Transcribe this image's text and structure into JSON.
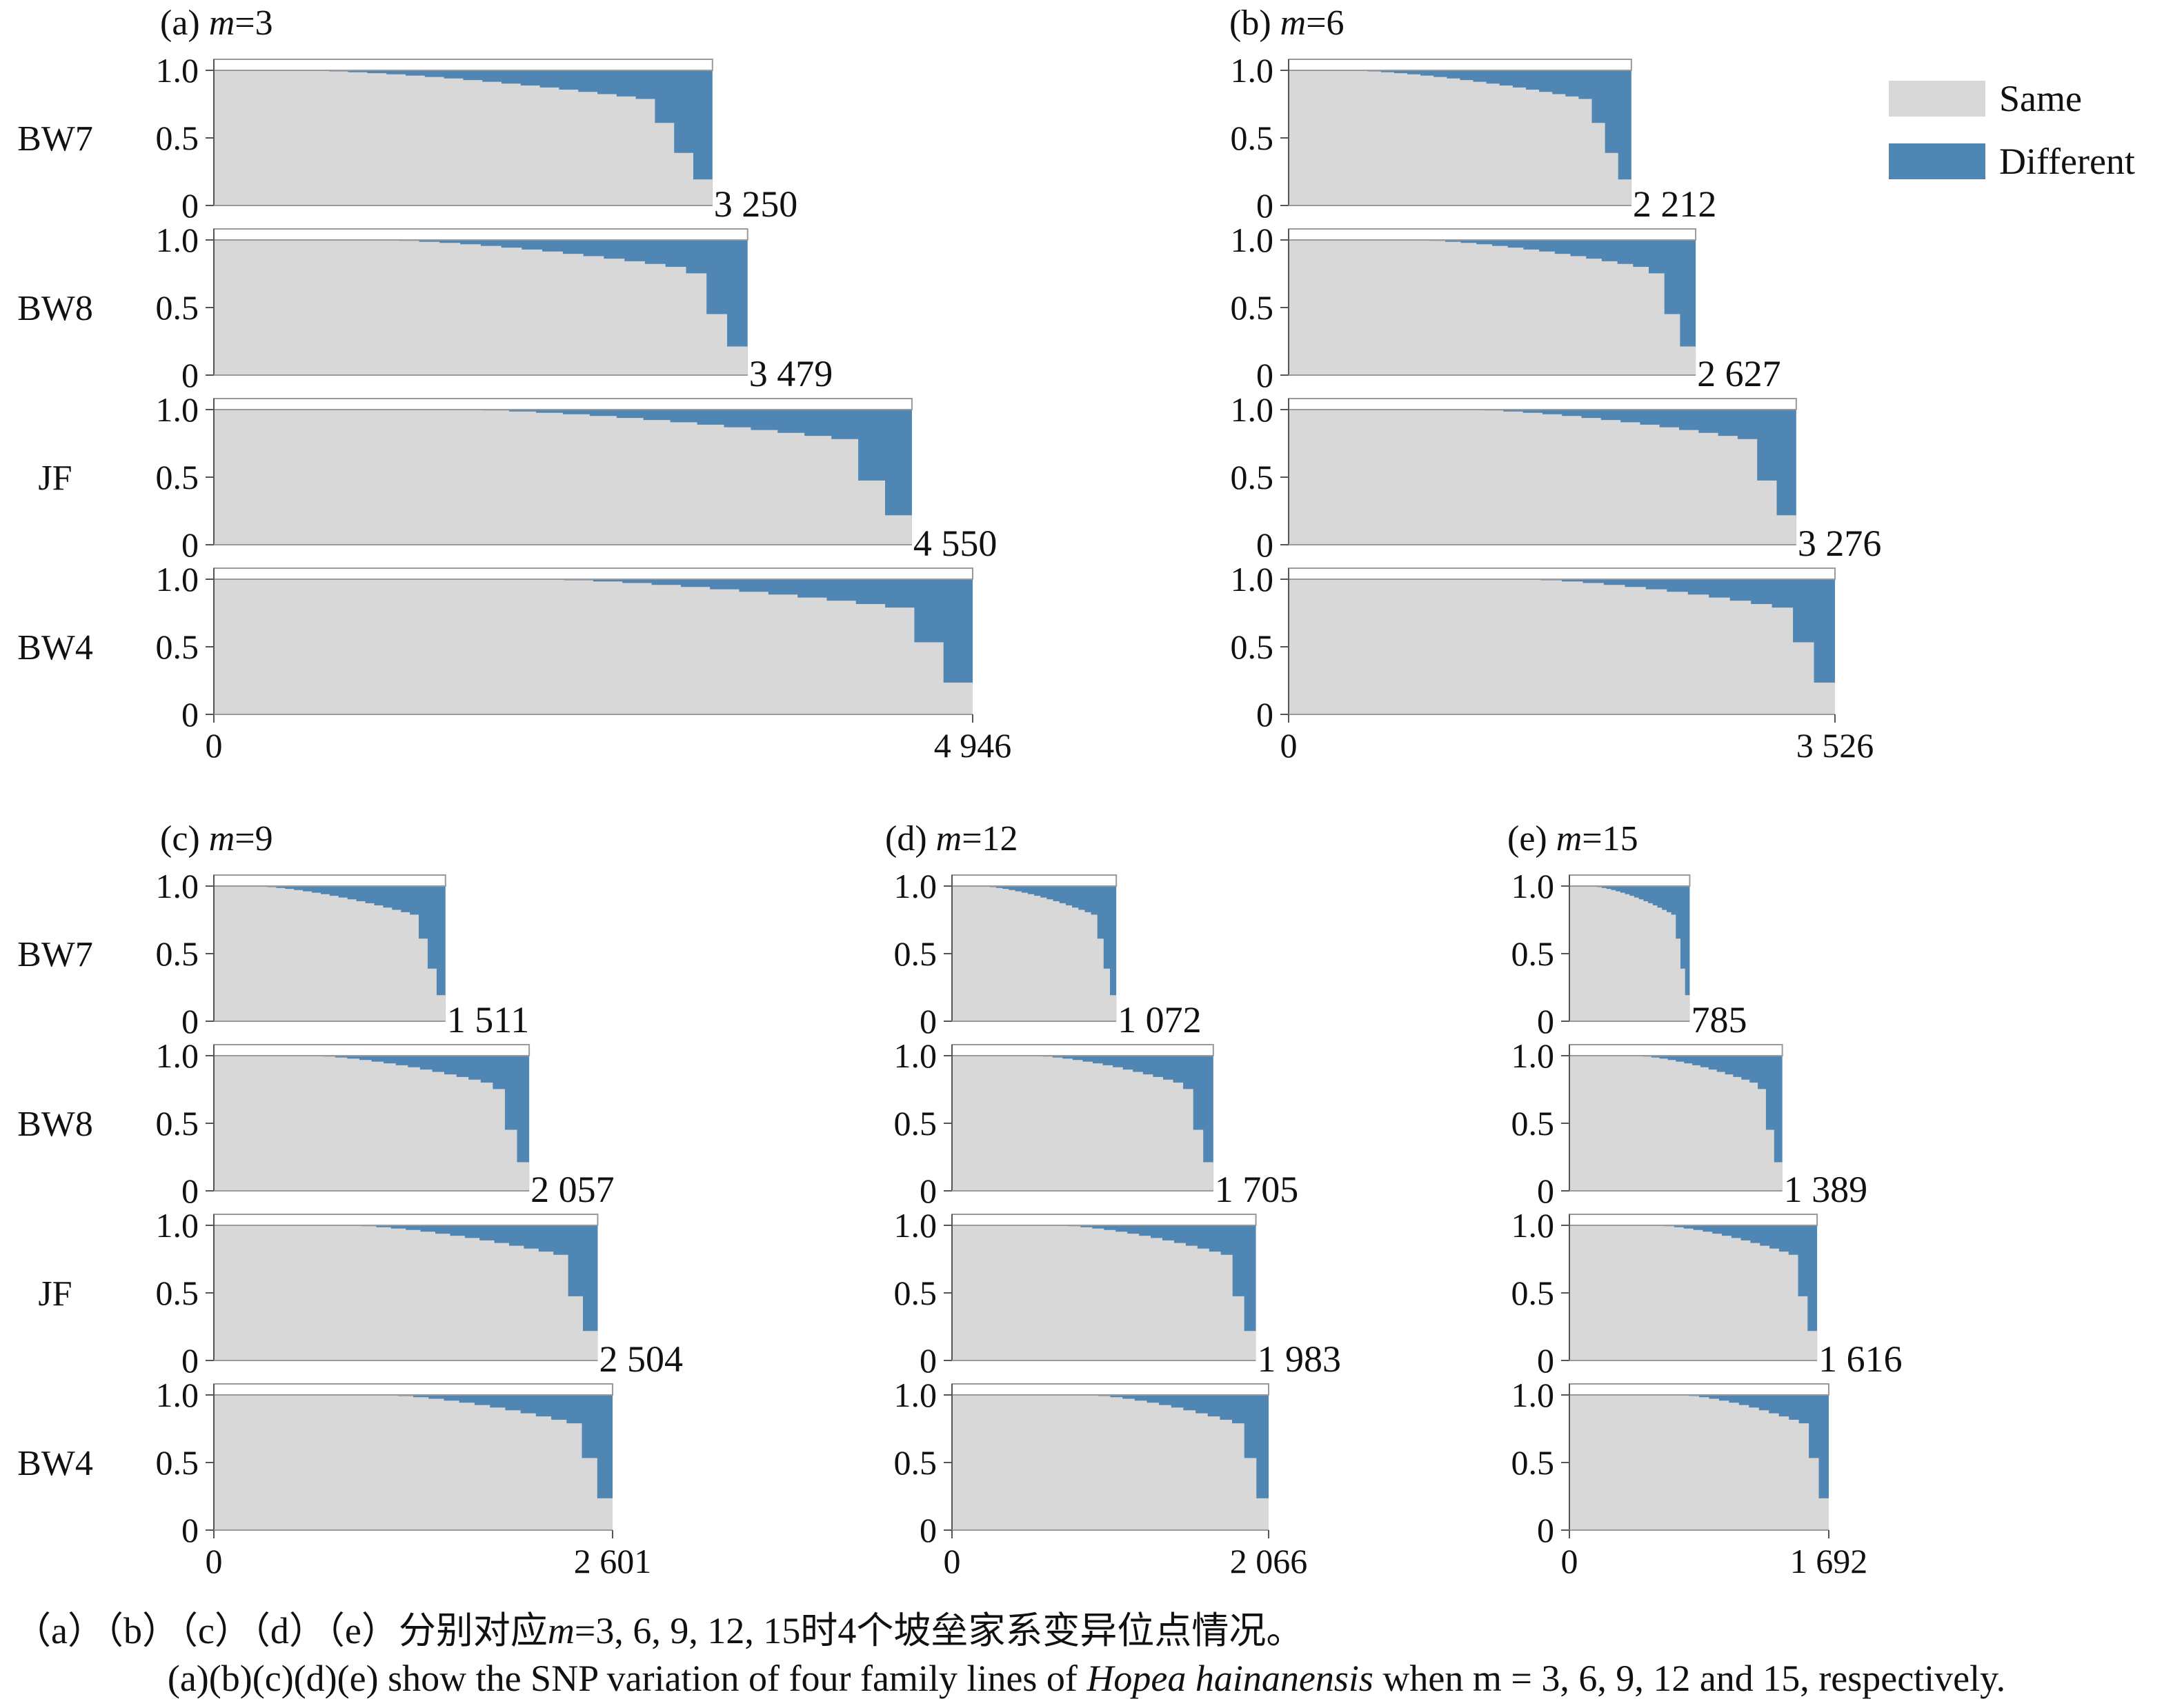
{
  "legend": {
    "same_label": "Same",
    "different_label": "Different",
    "colors": {
      "same": "#d8d8d8",
      "different": "#4f86b4"
    }
  },
  "chart_data": {
    "type": "area",
    "description_axis": "SNP sites sorted by proportion (0-1)",
    "y_ticks": [
      "1.0",
      "0.5",
      "0"
    ],
    "ylim": [
      0,
      1
    ],
    "families": [
      "BW7",
      "BW8",
      "JF",
      "BW4"
    ],
    "panels": [
      {
        "label": "(a) ",
        "m_text": "m",
        "eq_text": "=3",
        "x_start_label": "0",
        "x_end_label": "4 946",
        "xlim": [
          0,
          4946
        ],
        "series": [
          {
            "family": "BW7",
            "sites": 3250,
            "end_label": "3 250"
          },
          {
            "family": "BW8",
            "sites": 3479,
            "end_label": "3 479"
          },
          {
            "family": "JF",
            "sites": 4550,
            "end_label": "4 550"
          },
          {
            "family": "BW4",
            "sites": 4946,
            "end_label": ""
          }
        ]
      },
      {
        "label": "(b) ",
        "m_text": "m",
        "eq_text": "=6",
        "x_start_label": "0",
        "x_end_label": "3 526",
        "xlim": [
          0,
          3526
        ],
        "series": [
          {
            "family": "BW7",
            "sites": 2212,
            "end_label": "2 212"
          },
          {
            "family": "BW8",
            "sites": 2627,
            "end_label": "2 627"
          },
          {
            "family": "JF",
            "sites": 3276,
            "end_label": "3 276"
          },
          {
            "family": "BW4",
            "sites": 3526,
            "end_label": ""
          }
        ]
      },
      {
        "label": "(c) ",
        "m_text": "m",
        "eq_text": "=9",
        "x_start_label": "0",
        "x_end_label": "2 601",
        "xlim": [
          0,
          2601
        ],
        "series": [
          {
            "family": "BW7",
            "sites": 1511,
            "end_label": "1 511"
          },
          {
            "family": "BW8",
            "sites": 2057,
            "end_label": "2 057"
          },
          {
            "family": "JF",
            "sites": 2504,
            "end_label": "2 504"
          },
          {
            "family": "BW4",
            "sites": 2601,
            "end_label": ""
          }
        ]
      },
      {
        "label": "(d) ",
        "m_text": "m",
        "eq_text": "=12",
        "x_start_label": "0",
        "x_end_label": "2 066",
        "xlim": [
          0,
          2066
        ],
        "series": [
          {
            "family": "BW7",
            "sites": 1072,
            "end_label": "1 072"
          },
          {
            "family": "BW8",
            "sites": 1705,
            "end_label": "1 705"
          },
          {
            "family": "JF",
            "sites": 1983,
            "end_label": "1 983"
          },
          {
            "family": "BW4",
            "sites": 2066,
            "end_label": ""
          }
        ]
      },
      {
        "label": "(e) ",
        "m_text": "m",
        "eq_text": "=15",
        "x_start_label": "0",
        "x_end_label": "1 692",
        "xlim": [
          0,
          1692
        ],
        "series": [
          {
            "family": "BW7",
            "sites": 785,
            "end_label": "785"
          },
          {
            "family": "BW8",
            "sites": 1389,
            "end_label": "1 389"
          },
          {
            "family": "JF",
            "sites": 1616,
            "end_label": "1 616"
          },
          {
            "family": "BW4",
            "sites": 1692,
            "end_label": ""
          }
        ]
      }
    ]
  },
  "caption": {
    "zh_prefix": "（a）（b）（c）（d）（e）分别对应",
    "zh_m": "m",
    "zh_suffix": "=3, 6, 9, 12, 15时4个坡垒家系变异位点情况。",
    "en_prefix": "(a)(b)(c)(d)(e) show the SNP variation of four family lines of ",
    "en_species": "Hopea hainanensis",
    "en_suffix": " when m = 3, 6, 9, 12 and 15, respectively."
  }
}
